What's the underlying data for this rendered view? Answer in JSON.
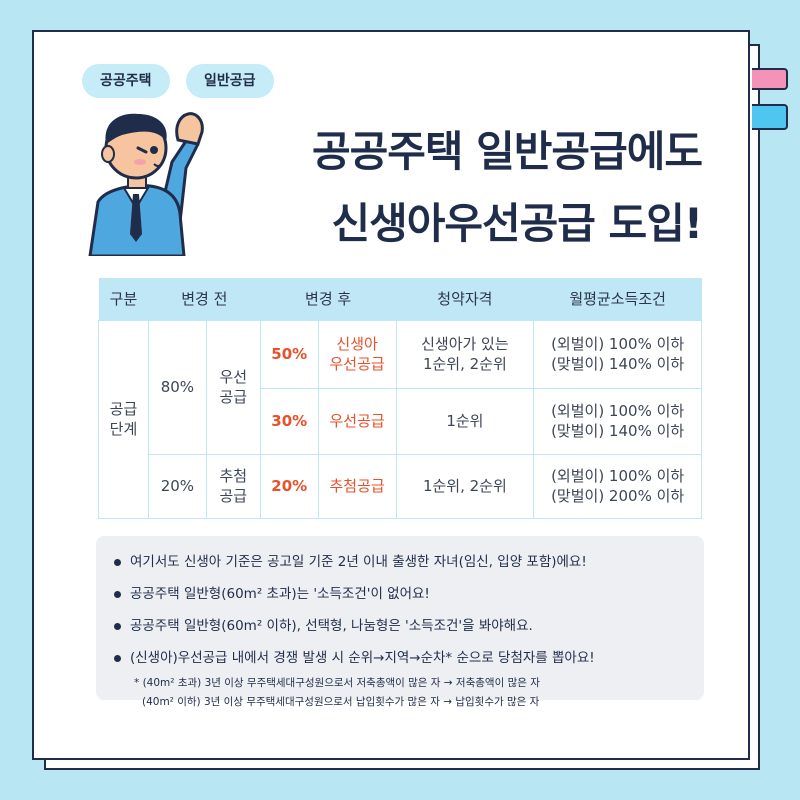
{
  "tags": [
    "공공주택",
    "일반공급"
  ],
  "title": {
    "line1": "공공주택 일반공급에도",
    "line2": "신생아우선공급 도입!"
  },
  "table": {
    "headers": {
      "category": "구분",
      "before": "변경 전",
      "after": "변경 후",
      "eligibility": "청약자격",
      "income": "월평균소득조건"
    },
    "row_group_label": "공급\n단계",
    "before_rows": [
      {
        "pct": "80%",
        "type": "우선\n공급"
      },
      {
        "pct": "20%",
        "type": "추첨\n공급"
      }
    ],
    "rows": [
      {
        "pct": "50%",
        "type": "신생아\n우선공급",
        "eligibility": "신생아가 있는\n1순위, 2순위",
        "income": "(외벌이) 100% 이하\n(맞벌이) 140% 이하"
      },
      {
        "pct": "30%",
        "type": "우선공급",
        "eligibility": "1순위",
        "income": "(외벌이) 100% 이하\n(맞벌이) 140% 이하"
      },
      {
        "pct": "20%",
        "type": "추첨공급",
        "eligibility": "1순위, 2순위",
        "income": "(외벌이) 100% 이하\n(맞벌이) 200% 이하"
      }
    ]
  },
  "notes": [
    "여기서도 신생아 기준은 공고일 기준 2년 이내 출생한 자녀(임신, 입양 포함)에요!",
    "공공주택 일반형(60m² 초과)는 '소득조건'이 없어요!",
    "공공주택 일반형(60m² 이하), 선택형, 나눔형은 '소득조건'을 봐야해요.",
    "(신생아)우선공급 내에서 경쟁 발생 시 순위→지역→순차* 순으로 당첨자를 뽑아요!"
  ],
  "sub_notes": [
    "* (40m² 초과) 3년 이상 무주택세대구성원으로서 저축총액이 많은 자 → 저축총액이 많은 자",
    "(40m² 이하) 3년 이상 무주택세대구성원으로서 납입횟수가 많은 자 → 납입횟수가 많은 자"
  ],
  "colors": {
    "navy": "#1f2d4a",
    "light_blue": "#bfe7f5",
    "orange": "#e8512a",
    "pink": "#f592b7",
    "sky": "#4fc6ef"
  },
  "icons": [
    "person-waving-illustration"
  ]
}
